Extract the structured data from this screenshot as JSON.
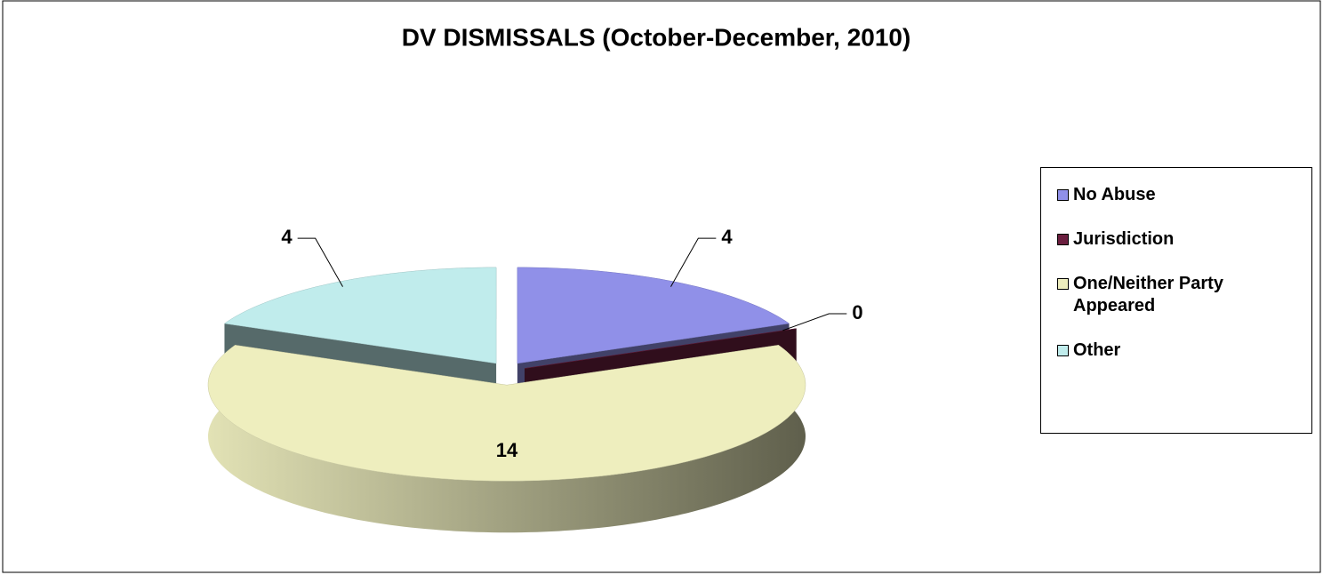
{
  "chart_data": {
    "type": "pie",
    "title": "DV DISMISSALS (October-December, 2010)",
    "categories": [
      "No Abuse",
      "Jurisdiction",
      "One/Neither Party Appeared",
      "Other"
    ],
    "values": [
      4,
      0,
      14,
      4
    ],
    "colors": [
      "#9090e8",
      "#6b1f3f",
      "#eeeebe",
      "#c0ecec"
    ],
    "legend": "right"
  }
}
